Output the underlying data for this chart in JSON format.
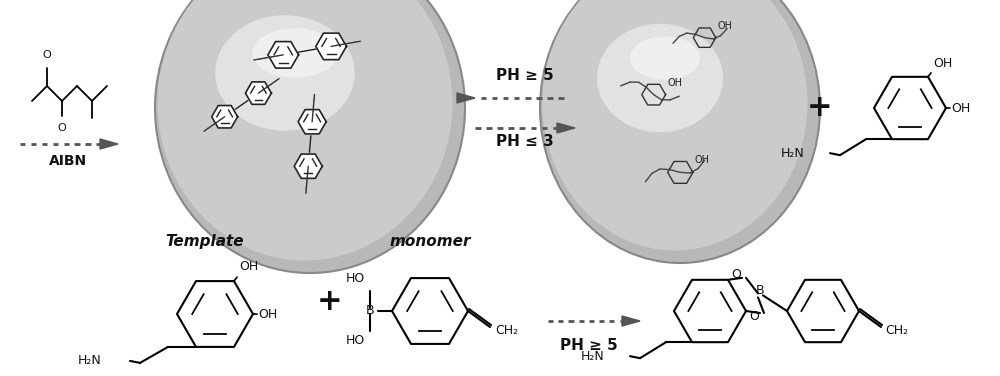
{
  "bg_color": "#ffffff",
  "text_color": "#111111",
  "arrow_color": "#555555",
  "label_template": "Template",
  "label_monomer": "monomer",
  "label_aibn": "AIBN",
  "label_ph_top": "PH ≥ 5",
  "label_ph_le3": "PH ≤ 3",
  "label_ph_ge5": "PH ≥ 5",
  "fig_width": 10.0,
  "fig_height": 3.76,
  "dpi": 100
}
